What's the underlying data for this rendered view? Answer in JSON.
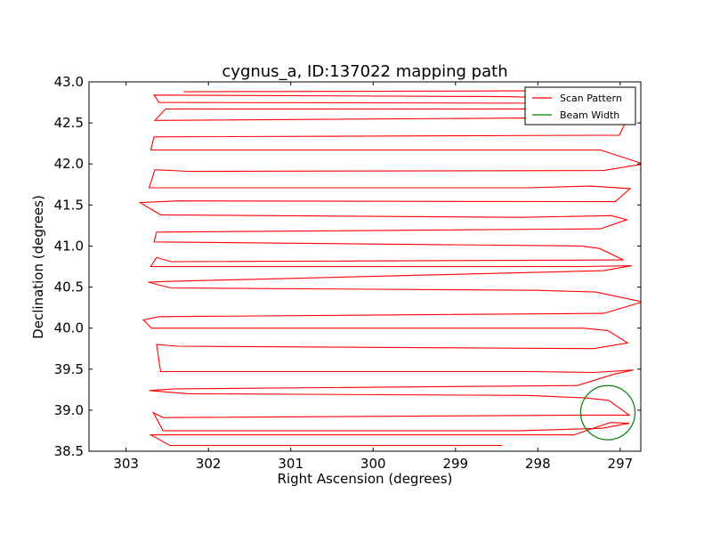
{
  "chart_data": {
    "type": "line",
    "title": "cygnus_a, ID:137022 mapping path",
    "xlabel": "Right Ascension (degrees)",
    "ylabel": "Declination (degrees)",
    "xlim": [
      303.45,
      296.75
    ],
    "ylim": [
      38.5,
      43.0
    ],
    "x_reversed": true,
    "xticks": [
      303,
      302,
      301,
      300,
      299,
      298,
      297
    ],
    "yticks": [
      38.5,
      39.0,
      39.5,
      40.0,
      40.5,
      41.0,
      41.5,
      42.0,
      42.5,
      43.0
    ],
    "xtick_labels": [
      "303",
      "302",
      "301",
      "300",
      "299",
      "298",
      "297"
    ],
    "ytick_labels": [
      "38.5",
      "39.0",
      "39.5",
      "40.0",
      "40.5",
      "41.0",
      "41.5",
      "42.0",
      "42.5",
      "43.0"
    ],
    "grid": false,
    "legend": {
      "position": "top-right",
      "entries": [
        {
          "name": "Scan Pattern",
          "color": "#ff0000"
        },
        {
          "name": "Beam Width",
          "color": "#008000"
        }
      ]
    },
    "series": [
      {
        "name": "Scan Pattern",
        "color": "#ff0000",
        "x": [
          298.43,
          302.47,
          302.7,
          297.56,
          297.12,
          296.89,
          297.22,
          298.21,
          302.55,
          302.67,
          302.55,
          297.41,
          296.89,
          297.14,
          297.43,
          298.11,
          302.24,
          302.72,
          302.41,
          297.52,
          297.07,
          296.84,
          297.32,
          298.14,
          302.58,
          302.63,
          302.37,
          297.32,
          296.91,
          297.15,
          297.45,
          298.21,
          302.69,
          302.79,
          302.6,
          297.2,
          296.73,
          297.3,
          298.01,
          302.46,
          302.73,
          302.45,
          297.2,
          296.86,
          297.44,
          302.7,
          302.63,
          302.45,
          296.96,
          297.25,
          297.47,
          302.66,
          302.63,
          297.24,
          296.92,
          297.11,
          298.21,
          302.58,
          302.83,
          302.36,
          297.06,
          296.88,
          297.36,
          298.14,
          302.72,
          302.65,
          302.24,
          297.2,
          296.72,
          297.24,
          302.7,
          302.66,
          297.01,
          296.93,
          297.25,
          298.14,
          302.65,
          302.52,
          297.52,
          297.04,
          297.25,
          298.36,
          302.66,
          302.6,
          297.64,
          297.02,
          298.03,
          302.3
        ],
        "y": [
          38.57,
          38.57,
          38.7,
          38.7,
          38.85,
          38.84,
          38.78,
          38.75,
          38.75,
          38.97,
          38.91,
          38.94,
          38.94,
          39.12,
          39.15,
          39.18,
          39.2,
          39.24,
          39.26,
          39.3,
          39.44,
          39.49,
          39.46,
          39.47,
          39.47,
          39.8,
          39.78,
          39.75,
          39.82,
          39.97,
          40.0,
          40.0,
          40.0,
          40.1,
          40.14,
          40.18,
          40.32,
          40.44,
          40.46,
          40.49,
          40.56,
          40.57,
          40.7,
          40.76,
          40.75,
          40.75,
          40.86,
          40.81,
          40.83,
          40.97,
          41.0,
          41.05,
          41.17,
          41.21,
          41.32,
          41.37,
          41.35,
          41.38,
          41.53,
          41.55,
          41.54,
          41.7,
          41.73,
          41.71,
          41.71,
          41.93,
          41.91,
          41.92,
          42.0,
          42.17,
          42.17,
          42.33,
          42.35,
          42.52,
          42.53,
          42.56,
          42.53,
          42.67,
          42.67,
          42.78,
          42.79,
          42.82,
          42.84,
          42.75,
          42.74,
          42.88,
          42.89,
          42.88
        ]
      },
      {
        "name": "Beam Width",
        "color": "#008000",
        "type": "circle",
        "center": [
          297.15,
          38.97
        ],
        "radius_x_deg": 0.33,
        "radius_y_deg": 0.33
      }
    ]
  }
}
